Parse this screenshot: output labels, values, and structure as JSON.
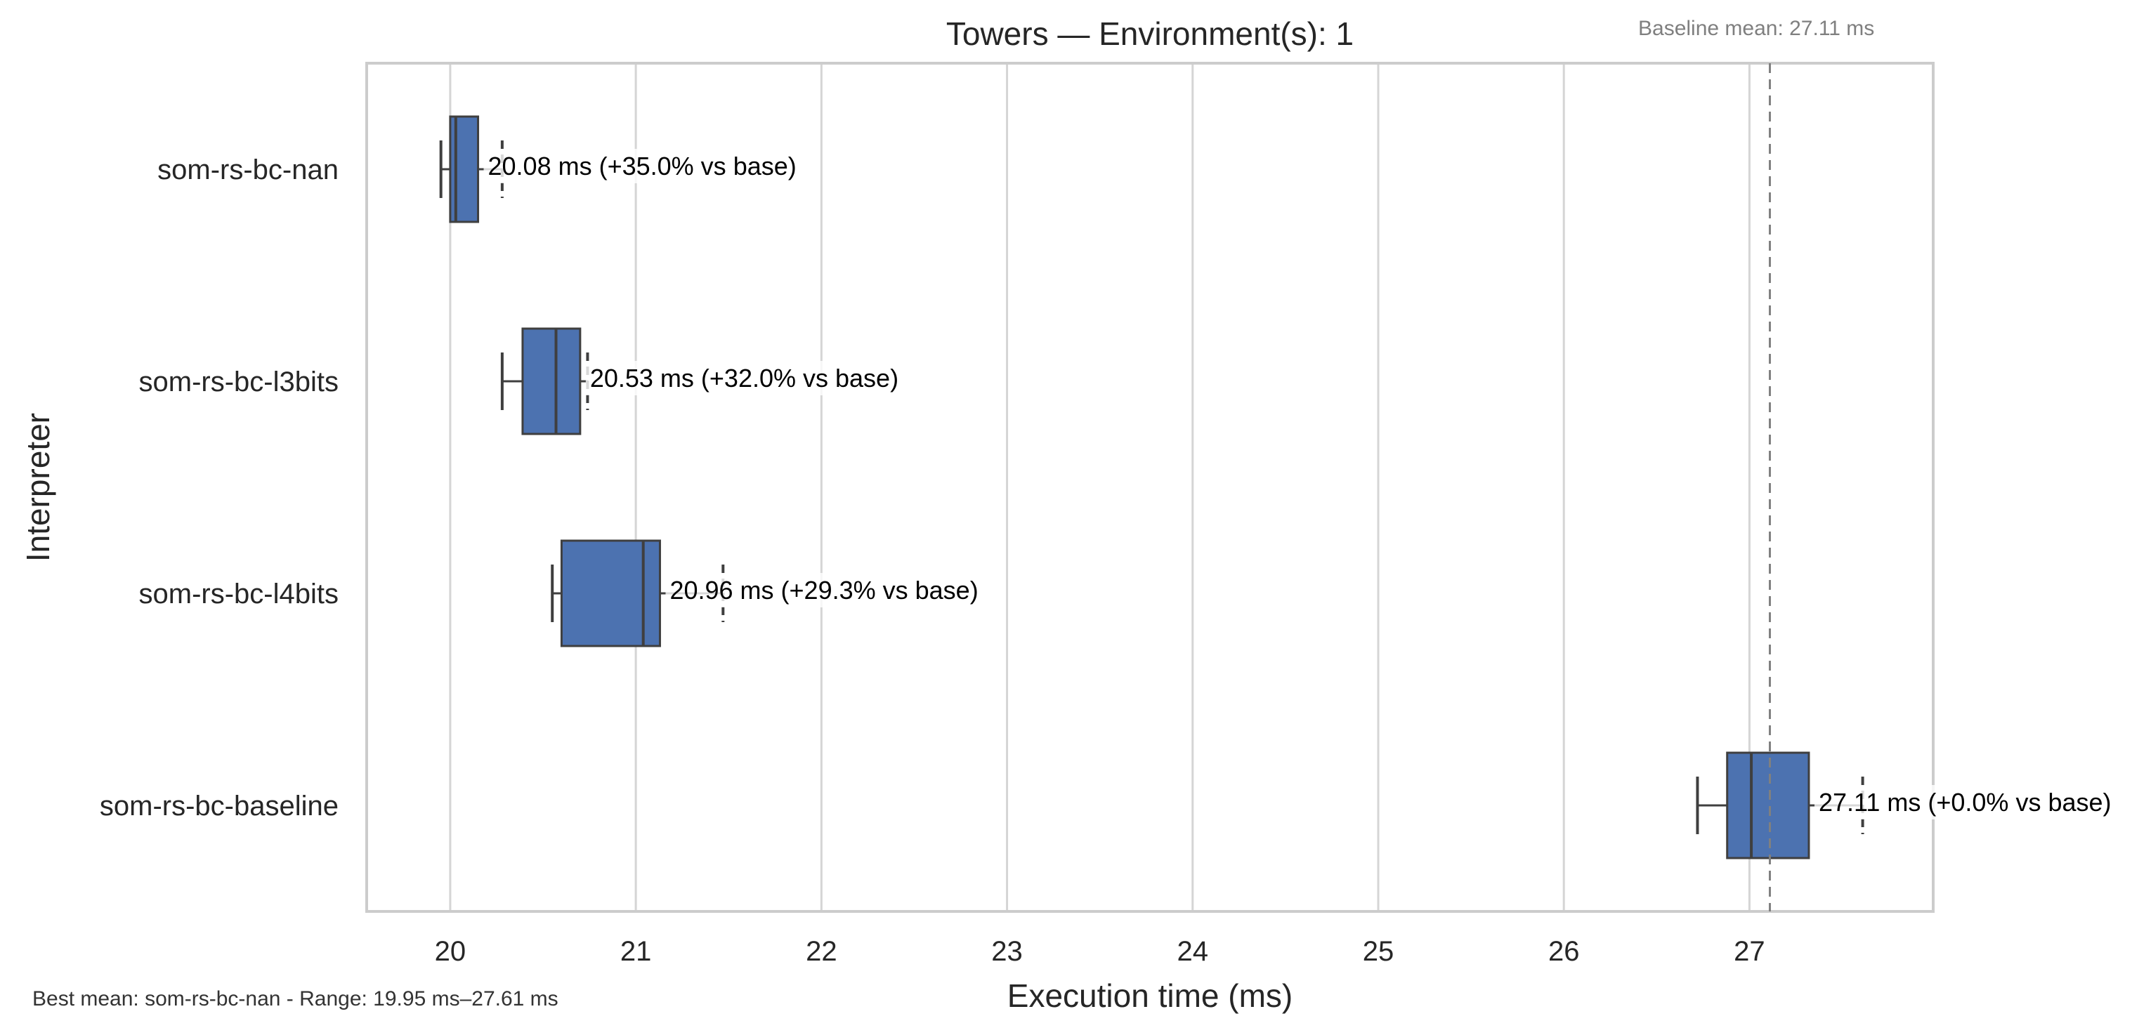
{
  "chart_data": {
    "type": "box",
    "title": "Towers — Environment(s): 1",
    "xlabel": "Execution time (ms)",
    "ylabel": "Interpreter",
    "xlim": [
      19.55,
      27.99
    ],
    "xticks": [
      20,
      21,
      22,
      23,
      24,
      25,
      26,
      27
    ],
    "grid": "vertical",
    "box_color": "#4c72b0",
    "series": [
      {
        "name": "som-rs-bc-nan",
        "min": 19.95,
        "q1": 20.0,
        "median": 20.03,
        "q3": 20.15,
        "max": 20.28,
        "mean": 20.08,
        "label": "20.08 ms  (+35.0% vs base)"
      },
      {
        "name": "som-rs-bc-l3bits",
        "min": 20.28,
        "q1": 20.39,
        "median": 20.57,
        "q3": 20.7,
        "max": 20.74,
        "mean": 20.53,
        "label": "20.53 ms  (+32.0% vs base)"
      },
      {
        "name": "som-rs-bc-l4bits",
        "min": 20.55,
        "q1": 20.6,
        "median": 21.04,
        "q3": 21.13,
        "max": 21.47,
        "mean": 20.96,
        "label": "20.96 ms  (+29.3% vs base)"
      },
      {
        "name": "som-rs-bc-baseline",
        "min": 26.72,
        "q1": 26.88,
        "median": 27.01,
        "q3": 27.32,
        "max": 27.61,
        "mean": 27.11,
        "label": "27.11 ms  (+0.0% vs base)"
      }
    ],
    "baseline": {
      "value": 27.11,
      "color": "#808080",
      "style": "dashed"
    },
    "annotations": {
      "baseline_text": "Baseline mean: 27.11 ms",
      "footer_text": "Best mean: som-rs-bc-nan - Range: 19.95 ms–27.61 ms"
    }
  }
}
